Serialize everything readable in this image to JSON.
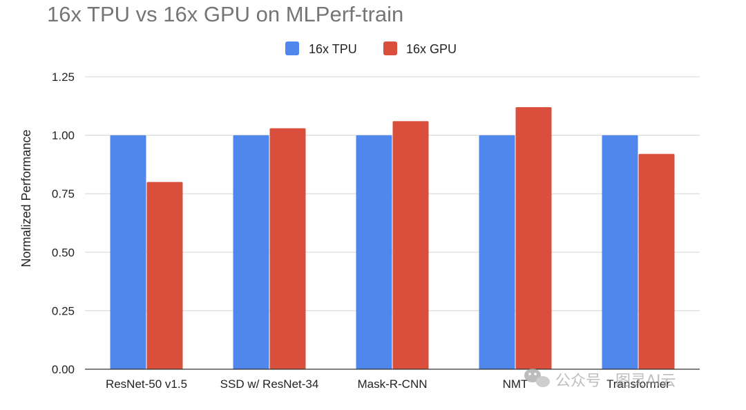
{
  "chart_data": {
    "type": "bar",
    "title": "16x TPU vs 16x GPU on MLPerf-train",
    "ylabel": "Normalized Performance",
    "xlabel": "",
    "ylim": [
      0,
      1.25
    ],
    "yticks": [
      "0.00",
      "0.25",
      "0.50",
      "0.75",
      "1.00",
      "1.25"
    ],
    "ytick_values": [
      0,
      0.25,
      0.5,
      0.75,
      1.0,
      1.25
    ],
    "grid": true,
    "legend_position": "top-center",
    "categories": [
      "ResNet-50 v1.5",
      "SSD w/ ResNet-34",
      "Mask-R-CNN",
      "NMT",
      "Transformer"
    ],
    "series": [
      {
        "name": "16x TPU",
        "color": "#5087EC",
        "values": [
          1.0,
          1.0,
          1.0,
          1.0,
          1.0
        ]
      },
      {
        "name": "16x GPU",
        "color": "#DA4E3C",
        "values": [
          0.8,
          1.03,
          1.06,
          1.12,
          0.92
        ]
      }
    ]
  },
  "watermark": {
    "text": "公众号 · 图灵AI云",
    "icon": "wechat-icon"
  }
}
